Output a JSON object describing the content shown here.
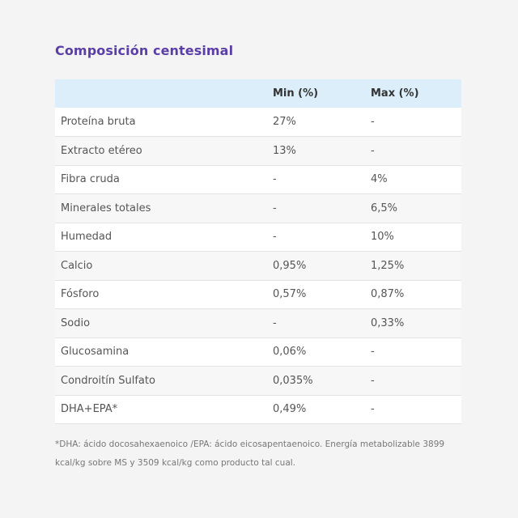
{
  "title": "Composición centesimal",
  "table": {
    "headers": [
      "",
      "Min (%)",
      "Max (%)"
    ],
    "rows": [
      {
        "name": "Proteína bruta",
        "min": "27%",
        "max": "-"
      },
      {
        "name": "Extracto etéreo",
        "min": "13%",
        "max": "-"
      },
      {
        "name": "Fibra cruda",
        "min": "-",
        "max": "4%"
      },
      {
        "name": "Minerales totales",
        "min": "-",
        "max": "6,5%"
      },
      {
        "name": "Humedad",
        "min": "-",
        "max": "10%"
      },
      {
        "name": "Calcio",
        "min": "0,95%",
        "max": "1,25%"
      },
      {
        "name": "Fósforo",
        "min": "0,57%",
        "max": "0,87%"
      },
      {
        "name": "Sodio",
        "min": "-",
        "max": "0,33%"
      },
      {
        "name": "Glucosamina",
        "min": "0,06%",
        "max": "-"
      },
      {
        "name": "Condroitín Sulfato",
        "min": "0,035%",
        "max": "-"
      },
      {
        "name": "DHA+EPA*",
        "min": "0,49%",
        "max": "-"
      }
    ]
  },
  "footnote": "*DHA: ácido docosahexaenoico /EPA: ácido eicosapentaenoico. Energía metabolizable 3899 kcal/kg sobre MS y 3509 kcal/kg como producto tal cual.",
  "colors": {
    "title": "#5b3fa6",
    "header_bg": "#dbeef9",
    "page_bg": "#f4f4f5"
  }
}
